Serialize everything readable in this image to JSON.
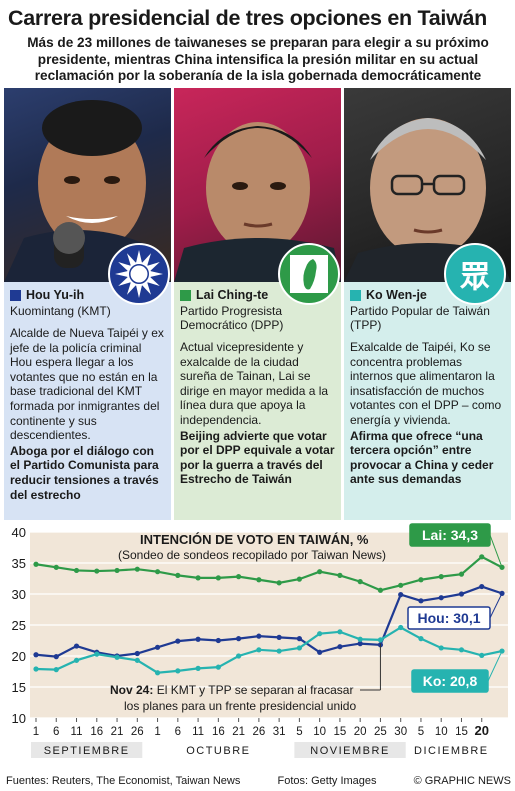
{
  "header": {
    "title": "Carrera presidencial de tres opciones en Taiwán",
    "subtitle": "Más de 23 millones de taiwaneses se preparan para elegir a su próximo presidente, mientras China intensifica la presión militar en su actual reclamación por la soberanía de la isla gobernada democráticamente"
  },
  "candidates": [
    {
      "name": "Hou Yu-ih",
      "party": "Kuomintang (KMT)",
      "description": "Alcalde de Nueva Taipéi y ex jefe de la policía criminal Hou espera llegar a los votantes que no están en la base tradicional del KMT formada por inmigrantes del continente y sus descendientes.",
      "bold_text": "Aboga por el diálogo con el Partido Comunista para reducir tensiones a través del estrecho",
      "color": "#1f3a93",
      "panel_bg": "#d7e3f4",
      "badge_icon": "kmt-sun-emblem-icon"
    },
    {
      "name": "Lai Ching-te",
      "party": "Partido Progresista Democrático (DPP)",
      "description": "Actual vicepresidente y exalcalde de la ciudad sureña de Tainan, Lai se dirige en mayor medida a la línea dura que apoya la independencia.",
      "bold_text": "Beijing advierte que votar por el DPP equivale a votar por la guerra a través del Estrecho de Taiwán",
      "color": "#2e9a48",
      "panel_bg": "#dcebd5",
      "badge_icon": "dpp-taiwan-map-icon"
    },
    {
      "name": "Ko Wen-je",
      "party": "Partido Popular de Taiwán (TPP)",
      "description": "Exalcalde de Taipéi, Ko se concentra problemas internos que alimentaron la insatisfacción de muchos votantes con el DPP – como energía y vivienda.",
      "bold_text": "Afirma que ofrece “una tercera opción” entre provocar a China y ceder ante sus demandas",
      "color": "#26b3b0",
      "panel_bg": "#d4eeec",
      "badge_icon": "tpp-emblem-icon",
      "badge_glyph": "眾"
    }
  ],
  "chart_data": {
    "type": "line",
    "title": "INTENCIÓN DE VOTO EN TAIWÁN, %",
    "subtitle": "(Sondeo de sondeos recopilado por Taiwan News)",
    "ylim": [
      10,
      40
    ],
    "yticks": [
      10,
      15,
      20,
      25,
      30,
      35,
      40
    ],
    "x_tick_labels": [
      "1",
      "6",
      "11",
      "16",
      "21",
      "26",
      "1",
      "6",
      "11",
      "16",
      "21",
      "26",
      "31",
      "5",
      "10",
      "15",
      "20",
      "25",
      "30",
      "5",
      "10",
      "15",
      "20"
    ],
    "months": [
      "SEPTIEMBRE",
      "OCTUBRE",
      "NOVIEMBRE",
      "DICIEMBRE"
    ],
    "series": [
      {
        "name": "Lai",
        "color": "#2e9a48",
        "values": [
          34.8,
          34.3,
          33.8,
          33.7,
          33.8,
          34.0,
          33.6,
          33.0,
          32.6,
          32.6,
          32.8,
          32.3,
          31.8,
          32.4,
          33.6,
          33.0,
          32.0,
          30.6,
          31.4,
          32.3,
          32.8,
          33.2,
          36.0,
          34.3
        ],
        "label": "Lai: 34,3"
      },
      {
        "name": "Hou",
        "color": "#1f3a93",
        "values": [
          20.2,
          19.9,
          21.6,
          20.6,
          20.0,
          20.4,
          21.4,
          22.4,
          22.7,
          22.5,
          22.8,
          23.2,
          23.0,
          22.8,
          20.6,
          21.5,
          22.0,
          21.8,
          29.9,
          28.9,
          29.4,
          30.0,
          31.2,
          30.1
        ],
        "label": "Hou: 30,1"
      },
      {
        "name": "Ko",
        "color": "#26b3b0",
        "values": [
          17.9,
          17.8,
          19.3,
          20.3,
          19.8,
          19.3,
          17.3,
          17.6,
          18.0,
          18.2,
          20.0,
          21.0,
          20.8,
          21.3,
          23.6,
          23.9,
          22.7,
          22.6,
          24.6,
          22.8,
          21.3,
          21.0,
          20.1,
          20.8
        ],
        "label": "Ko: 20,8"
      }
    ],
    "annotation": {
      "date": "Nov 24:",
      "text": "El KMT y TPP se separan al fracasar los planes para un frente presidencial unido",
      "text_line2": "los planes para un frente presidencial unido"
    },
    "colors": {
      "plot_bg": "#f1e6d8",
      "month_shade": "#e7d9c6",
      "grid": "#ffffff"
    }
  },
  "footer": {
    "sources": "Fuentes: Reuters, The Economist, Taiwan News",
    "photos": "Fotos: Getty Images",
    "copyright": "© GRAPHIC NEWS"
  }
}
